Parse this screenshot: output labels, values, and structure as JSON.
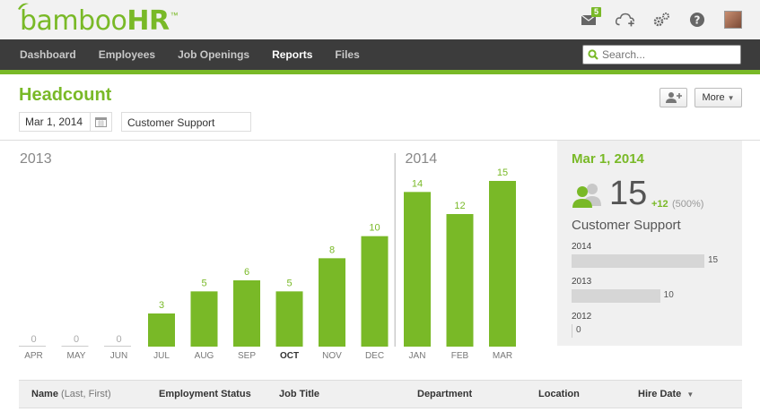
{
  "brand": {
    "name_part1": "bamboo",
    "name_part2": "HR",
    "tm": "™"
  },
  "top_icons": {
    "mail_badge": "5"
  },
  "nav": {
    "items": [
      {
        "label": "Dashboard",
        "active": false
      },
      {
        "label": "Employees",
        "active": false
      },
      {
        "label": "Job Openings",
        "active": false
      },
      {
        "label": "Reports",
        "active": true
      },
      {
        "label": "Files",
        "active": false
      }
    ],
    "search_placeholder": "Search..."
  },
  "page": {
    "title": "Headcount",
    "date_value": "Mar 1, 2014",
    "department_value": "Customer Support",
    "more_label": "More"
  },
  "chart_data": {
    "type": "bar",
    "groups": [
      "2013",
      "2014"
    ],
    "categories": [
      "APR",
      "MAY",
      "JUN",
      "JUL",
      "AUG",
      "SEP",
      "OCT",
      "NOV",
      "DEC",
      "JAN",
      "FEB",
      "MAR"
    ],
    "year_of_category": [
      "2013",
      "2013",
      "2013",
      "2013",
      "2013",
      "2013",
      "2013",
      "2013",
      "2013",
      "2014",
      "2014",
      "2014"
    ],
    "values": [
      0,
      0,
      0,
      3,
      5,
      6,
      5,
      8,
      10,
      14,
      12,
      15
    ],
    "highlighted_category": "OCT",
    "bar_color": "#79b927"
  },
  "summary": {
    "date": "Mar 1, 2014",
    "count": "15",
    "change": "+12",
    "change_pct": "(500%)",
    "department": "Customer Support",
    "years": [
      {
        "year": "2014",
        "value": 15,
        "label": "15"
      },
      {
        "year": "2013",
        "value": 10,
        "label": "10"
      },
      {
        "year": "2012",
        "value": 0,
        "label": "0"
      }
    ]
  },
  "table": {
    "columns": [
      {
        "label": "Name",
        "sub": "(Last, First)"
      },
      {
        "label": "Employment Status",
        "sub": ""
      },
      {
        "label": "Job Title",
        "sub": ""
      },
      {
        "label": "Department",
        "sub": ""
      },
      {
        "label": "Location",
        "sub": ""
      },
      {
        "label": "Hire Date",
        "sub": ""
      }
    ]
  },
  "colors": {
    "accent": "#79b927",
    "nav_bg": "#3c3c3c",
    "panel_bg": "#f0f0f0"
  }
}
